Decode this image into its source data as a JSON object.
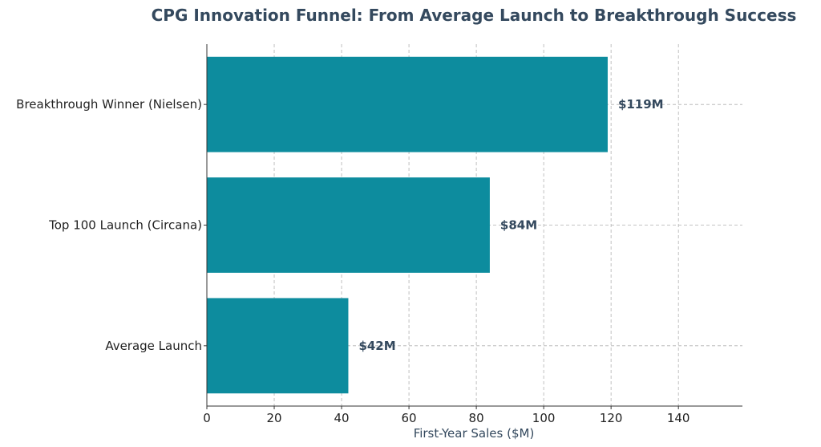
{
  "chart_data": {
    "type": "bar",
    "orientation": "horizontal",
    "title": "CPG Innovation Funnel: From Average Launch to Breakthrough Success",
    "xlabel": "First-Year Sales ($M)",
    "ylabel": "",
    "categories": [
      "Average Launch",
      "Top 100 Launch (Circana)",
      "Breakthrough Winner (Nielsen)"
    ],
    "values": [
      42,
      84,
      119
    ],
    "data_labels": [
      "$42M",
      "$84M",
      "$119M"
    ],
    "xlim": [
      0,
      159
    ],
    "xticks": [
      0,
      20,
      40,
      60,
      80,
      100,
      120,
      140
    ],
    "xtick_labels": [
      "0",
      "20",
      "40",
      "60",
      "80",
      "100",
      "120",
      "140"
    ],
    "grid": true,
    "bar_color": "#0d8c9e",
    "title_color": "#34495e"
  }
}
